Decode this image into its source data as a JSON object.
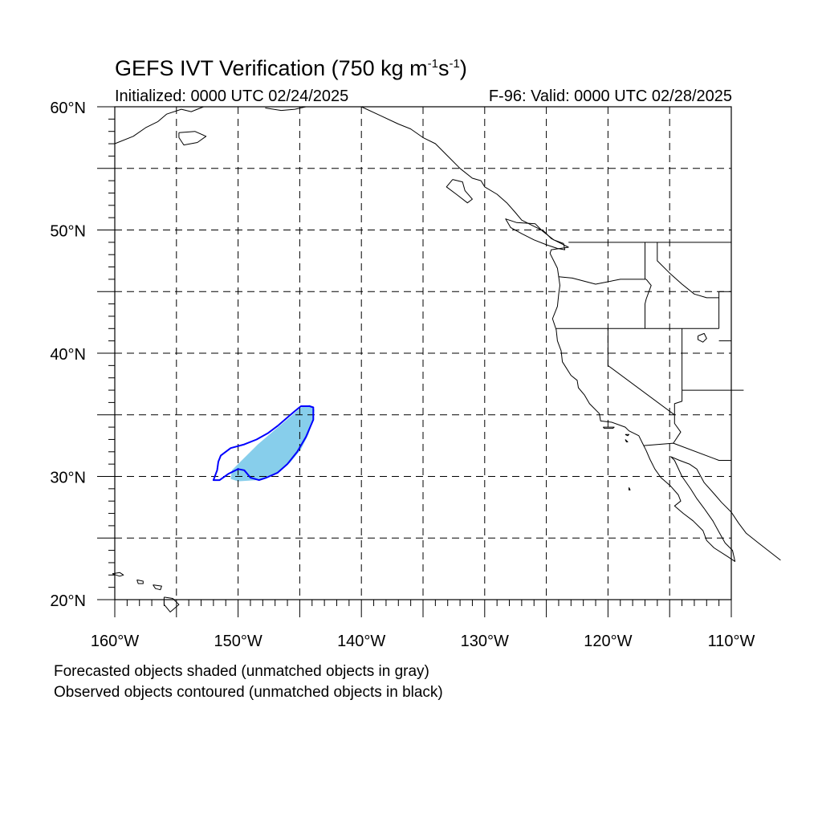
{
  "header": {
    "title_prefix": "GEFS IVT Verification (750 kg m",
    "title_exp1": "-1",
    "title_mid": "s",
    "title_exp2": "-1",
    "title_suffix": ")",
    "initialized": "Initialized: 0000 UTC 02/24/2025",
    "valid": "F-96: Valid: 0000 UTC 02/28/2025"
  },
  "map": {
    "projection": "cylindrical-equidistant",
    "lon_range": [
      -160,
      -110
    ],
    "lat_range": [
      20,
      60
    ],
    "lat_tick_labels": [
      {
        "lat": 60,
        "label": "60°N"
      },
      {
        "lat": 50,
        "label": "50°N"
      },
      {
        "lat": 40,
        "label": "40°N"
      },
      {
        "lat": 30,
        "label": "30°N"
      },
      {
        "lat": 20,
        "label": "20°N"
      }
    ],
    "lon_tick_labels": [
      {
        "lon": -160,
        "label": "160°W"
      },
      {
        "lon": -150,
        "label": "150°W"
      },
      {
        "lon": -140,
        "label": "140°W"
      },
      {
        "lon": -130,
        "label": "130°W"
      },
      {
        "lon": -120,
        "label": "120°W"
      },
      {
        "lon": -110,
        "label": "110°W"
      }
    ],
    "grid_spacing_deg": 5,
    "colors": {
      "forecast_fill": "#87ceeb",
      "observed_contour": "#0000ff",
      "coast": "#000000"
    },
    "forecast_object": [
      [
        -150.6,
        29.8
      ],
      [
        -150,
        29.6
      ],
      [
        -148.5,
        29.7
      ],
      [
        -147,
        30.2
      ],
      [
        -145.8,
        31.1
      ],
      [
        -144.9,
        32.2
      ],
      [
        -144.3,
        33.4
      ],
      [
        -143.9,
        34.6
      ],
      [
        -143.8,
        35.4
      ],
      [
        -144.2,
        35.8
      ],
      [
        -144.9,
        35.6
      ],
      [
        -145.8,
        34.8
      ],
      [
        -147,
        33.8
      ],
      [
        -148.4,
        32.6
      ],
      [
        -149.6,
        31.4
      ],
      [
        -150.5,
        30.5
      ]
    ],
    "observed_object": [
      [
        -152,
        29.7
      ],
      [
        -151.5,
        29.7
      ],
      [
        -150.8,
        30.2
      ],
      [
        -150,
        30.6
      ],
      [
        -149.5,
        30.5
      ],
      [
        -149,
        29.9
      ],
      [
        -148.3,
        29.7
      ],
      [
        -147.7,
        29.9
      ],
      [
        -146.8,
        30.3
      ],
      [
        -146,
        31.0
      ],
      [
        -145.2,
        32.0
      ],
      [
        -144.5,
        33.2
      ],
      [
        -143.9,
        34.6
      ],
      [
        -143.9,
        35.6
      ],
      [
        -144.2,
        35.7
      ],
      [
        -144.9,
        35.7
      ],
      [
        -145.4,
        35.3
      ],
      [
        -146.1,
        34.7
      ],
      [
        -146.8,
        34.1
      ],
      [
        -147.6,
        33.5
      ],
      [
        -148.5,
        33.0
      ],
      [
        -149.5,
        32.6
      ],
      [
        -150.6,
        32.3
      ],
      [
        -151.4,
        31.7
      ],
      [
        -151.6,
        31.2
      ],
      [
        -151.7,
        30.5
      ]
    ]
  },
  "notes": {
    "line1": "Forecasted objects shaded (unmatched objects in gray)",
    "line2": "Observed objects contoured (unmatched objects in black)"
  }
}
